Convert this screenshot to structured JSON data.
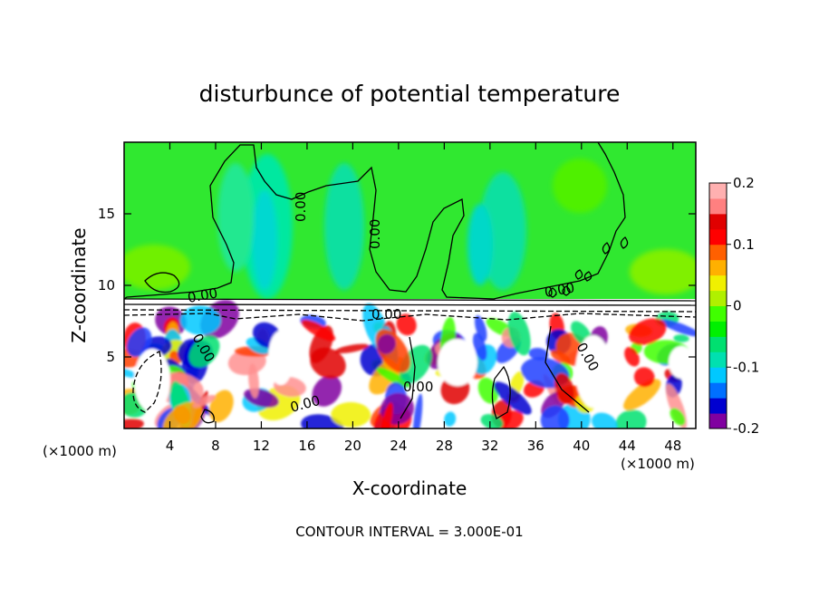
{
  "chart_data": {
    "type": "heatmap",
    "title": "disturbunce of potential temperature",
    "xlabel": "X-coordinate",
    "ylabel": "Z-coordinate",
    "x_unit_label": "(×1000 m)",
    "z_unit_label": "(×1000 m)",
    "xlim": [
      0,
      50
    ],
    "ylim": [
      0,
      20
    ],
    "x_ticks": [
      4,
      8,
      12,
      16,
      20,
      24,
      28,
      32,
      36,
      40,
      44,
      48
    ],
    "y_ticks": [
      5,
      10,
      15
    ],
    "colorbar": {
      "range": [
        -0.2,
        0.2
      ],
      "tick_values": [
        0.2,
        0.1,
        0,
        -0.1,
        -0.2
      ],
      "tick_labels": [
        "0.2",
        "0.1",
        "0",
        "-0.1",
        "-0.2"
      ],
      "colors": [
        "#8000a0",
        "#0000d0",
        "#0070ff",
        "#00c8ff",
        "#00e0b0",
        "#00e070",
        "#00f000",
        "#40ff00",
        "#b0f000",
        "#f0f000",
        "#ffb000",
        "#ff6000",
        "#ff0000",
        "#e00000",
        "#ff8080",
        "#ffb0b0"
      ]
    },
    "contour_labels": [
      "0.00",
      "0.00",
      "0.00",
      "0.00",
      "0.00",
      "0.00",
      "0.00",
      "0.00",
      "0.00"
    ],
    "contour_interval_text": "CONTOUR INTERVAL = 3.000E-01"
  }
}
